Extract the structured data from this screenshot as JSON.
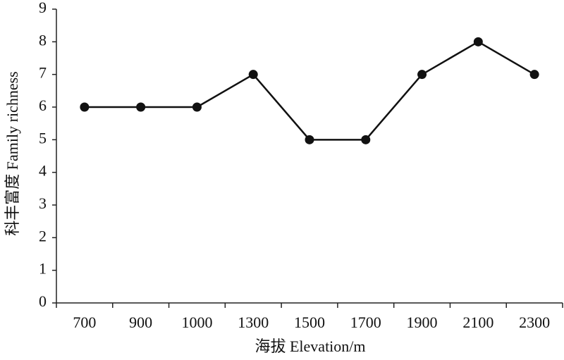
{
  "chart_data": {
    "type": "line",
    "x_label": "海拔 Elevation/m",
    "y_label": "科丰富度 Family richness",
    "categories": [
      "700",
      "900",
      "1000",
      "1300",
      "1500",
      "1700",
      "1900",
      "2100",
      "2300"
    ],
    "values": [
      6,
      6,
      6,
      7,
      5,
      5,
      7,
      8,
      7
    ],
    "color": "#111111",
    "ylim": [
      0,
      9
    ],
    "yticks": [
      0,
      1,
      2,
      3,
      4,
      5,
      6,
      7,
      8,
      9
    ],
    "grid": false
  }
}
